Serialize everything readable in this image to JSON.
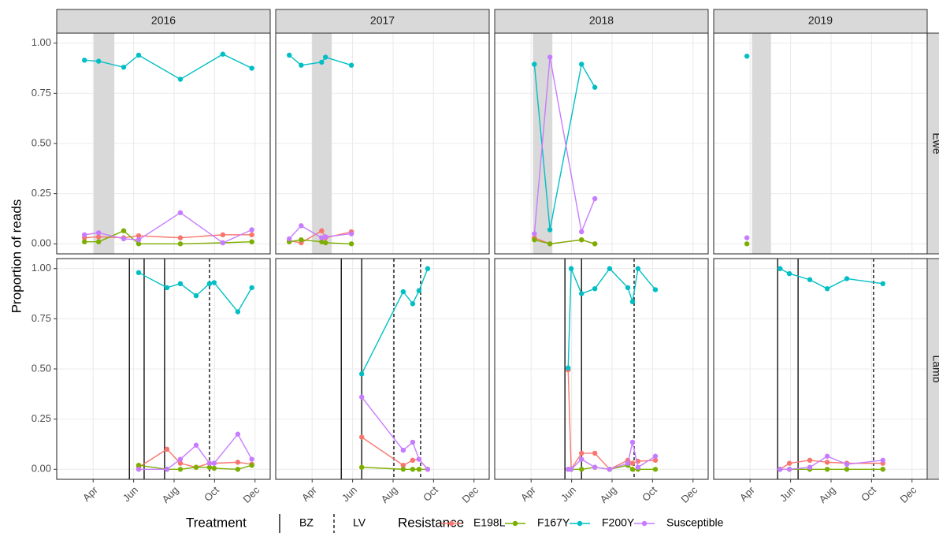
{
  "chart_data": {
    "type": "line",
    "y_label": "Proportion of reads",
    "ylim": [
      -0.05,
      1.05
    ],
    "yticks": [
      {
        "value": 0,
        "label": "0.00"
      },
      {
        "value": 0.25,
        "label": "0.25"
      },
      {
        "value": 0.5,
        "label": "0.50"
      },
      {
        "value": 0.75,
        "label": "0.75"
      },
      {
        "value": 1,
        "label": "1.00"
      }
    ],
    "xlim": [
      2.2,
      12.75
    ],
    "xticks": [
      {
        "value": 4,
        "label": "Apr"
      },
      {
        "value": 6,
        "label": "Jun"
      },
      {
        "value": 8,
        "label": "Aug"
      },
      {
        "value": 10,
        "label": "Oct"
      },
      {
        "value": 12,
        "label": "Dec"
      }
    ],
    "grid": true,
    "legend": {
      "treatment_title": "Treatment",
      "treatments": [
        "BZ",
        "LV"
      ],
      "resistance_title": "Resistance",
      "position": "bottom"
    },
    "series": [
      {
        "name": "E198L",
        "color": "#F8766D"
      },
      {
        "name": "F167Y",
        "color": "#7CAE00"
      },
      {
        "name": "F200Y",
        "color": "#00BFC4"
      },
      {
        "name": "Susceptible",
        "color": "#C77CFF"
      }
    ],
    "columns": [
      "2016",
      "2017",
      "2018",
      "2019"
    ],
    "rows": [
      {
        "label": "Ewe",
        "cells": [
          {
            "shade": [
              4.03,
              5.05
            ],
            "bz": [],
            "lv": [],
            "series": [
              {
                "name": "E198L",
                "x": [
                  3.57,
                  4.27,
                  5.51,
                  6.25,
                  8.31,
                  10.41,
                  11.84
                ],
                "values": [
                  0.03,
                  0.035,
                  0.03,
                  0.04,
                  0.03,
                  0.045,
                  0.045
                ]
              },
              {
                "name": "F167Y",
                "x": [
                  3.57,
                  4.27,
                  5.51,
                  6.25,
                  8.31,
                  10.41,
                  11.84
                ],
                "values": [
                  0.01,
                  0.01,
                  0.065,
                  0,
                  0,
                  0.005,
                  0.01
                ]
              },
              {
                "name": "F200Y",
                "x": [
                  3.57,
                  4.27,
                  5.51,
                  6.25,
                  8.31,
                  10.41,
                  11.84
                ],
                "values": [
                  0.915,
                  0.91,
                  0.88,
                  0.94,
                  0.82,
                  0.945,
                  0.875
                ]
              },
              {
                "name": "Susceptible",
                "x": [
                  3.57,
                  4.27,
                  5.51,
                  6.25,
                  8.31,
                  10.41,
                  11.84
                ],
                "values": [
                  0.045,
                  0.055,
                  0.025,
                  0.02,
                  0.155,
                  0.005,
                  0.07
                ]
              }
            ]
          },
          {
            "shade": [
              4.0,
              4.97
            ],
            "bz": [],
            "lv": [],
            "series": [
              {
                "name": "E198L",
                "x": [
                  2.87,
                  3.46,
                  4.47,
                  4.66,
                  5.94
                ],
                "values": [
                  0.015,
                  0.005,
                  0.065,
                  0.03,
                  0.06
                ]
              },
              {
                "name": "F167Y",
                "x": [
                  2.87,
                  3.46,
                  4.47,
                  4.66,
                  5.94
                ],
                "values": [
                  0.01,
                  0.02,
                  0.01,
                  0.005,
                  0
                ]
              },
              {
                "name": "F200Y",
                "x": [
                  2.87,
                  3.46,
                  4.47,
                  4.66,
                  5.94
                ],
                "values": [
                  0.94,
                  0.89,
                  0.905,
                  0.93,
                  0.89
                ]
              },
              {
                "name": "Susceptible",
                "x": [
                  2.87,
                  3.46,
                  4.47,
                  4.66,
                  5.94
                ],
                "values": [
                  0.025,
                  0.09,
                  0.03,
                  0.035,
                  0.05
                ]
              }
            ]
          },
          {
            "shade": [
              4.09,
              5.05
            ],
            "bz": [],
            "lv": [],
            "series": [
              {
                "name": "E198L",
                "x": [
                  4.16,
                  4.93,
                  6.49,
                  7.15
                ],
                "values": [
                  0.03,
                  0,
                  0.02,
                  0
                ]
              },
              {
                "name": "F167Y",
                "x": [
                  4.16,
                  4.93,
                  6.49,
                  7.15
                ],
                "values": [
                  0.02,
                  0,
                  0.02,
                  0
                ]
              },
              {
                "name": "F200Y",
                "x": [
                  4.16,
                  4.93,
                  6.49,
                  7.15
                ],
                "values": [
                  0.895,
                  0.07,
                  0.895,
                  0.78
                ]
              },
              {
                "name": "Susceptible",
                "x": [
                  4.16,
                  4.93,
                  6.49,
                  7.15
                ],
                "values": [
                  0.05,
                  0.93,
                  0.06,
                  0.225
                ]
              }
            ]
          },
          {
            "shade": [
              4.09,
              5.03
            ],
            "bz": [],
            "lv": [],
            "series": [
              {
                "name": "F167Y",
                "x": [
                  3.84
                ],
                "values": [
                  0
                ]
              },
              {
                "name": "F200Y",
                "x": [
                  3.84
                ],
                "values": [
                  0.935
                ]
              },
              {
                "name": "Susceptible",
                "x": [
                  3.84
                ],
                "values": [
                  0.03
                ]
              }
            ]
          }
        ]
      },
      {
        "label": "Lamb",
        "cells": [
          {
            "bz": [
              5.79,
              6.52,
              7.53
            ],
            "lv": [
              9.75
            ],
            "series": [
              {
                "name": "E198L",
                "x": [
                  6.25,
                  7.65,
                  8.31,
                  9.09,
                  9.75,
                  9.98,
                  11.15,
                  11.84
                ],
                "values": [
                  0.01,
                  0.1,
                  0.03,
                  0.01,
                  0.03,
                  0.03,
                  0.035,
                  0.025
                ]
              },
              {
                "name": "F167Y",
                "x": [
                  6.25,
                  7.65,
                  8.31,
                  9.09,
                  9.75,
                  9.98,
                  11.15,
                  11.84
                ],
                "values": [
                  0.02,
                  0,
                  0,
                  0.01,
                  0.01,
                  0.005,
                  0,
                  0.02
                ]
              },
              {
                "name": "F200Y",
                "x": [
                  6.25,
                  7.65,
                  8.31,
                  9.09,
                  9.75,
                  9.98,
                  11.15,
                  11.84
                ],
                "values": [
                  0.98,
                  0.905,
                  0.925,
                  0.865,
                  0.925,
                  0.93,
                  0.785,
                  0.905
                ]
              },
              {
                "name": "Susceptible",
                "x": [
                  6.25,
                  7.65,
                  8.31,
                  9.09,
                  9.75,
                  9.98,
                  11.15,
                  11.84
                ],
                "values": [
                  0,
                  0,
                  0.05,
                  0.12,
                  0.03,
                  0.03,
                  0.175,
                  0.05
                ]
              }
            ]
          },
          {
            "bz": [
              5.44,
              6.45
            ],
            "lv": [
              8.04,
              9.36
            ],
            "series": [
              {
                "name": "E198L",
                "x": [
                  6.45,
                  8.5,
                  8.97,
                  9.28,
                  9.71
                ],
                "values": [
                  0.16,
                  0.02,
                  0.045,
                  0.05,
                  0
                ]
              },
              {
                "name": "F167Y",
                "x": [
                  6.45,
                  8.5,
                  8.97,
                  9.28,
                  9.71
                ],
                "values": [
                  0.01,
                  0,
                  0,
                  0,
                  0
                ]
              },
              {
                "name": "F200Y",
                "x": [
                  6.45,
                  8.5,
                  8.97,
                  9.28,
                  9.71
                ],
                "values": [
                  0.475,
                  0.885,
                  0.825,
                  0.89,
                  1.0
                ]
              },
              {
                "name": "Susceptible",
                "x": [
                  6.45,
                  8.5,
                  8.97,
                  9.28,
                  9.71
                ],
                "values": [
                  0.36,
                  0.095,
                  0.135,
                  0.05,
                  0
                ]
              }
            ]
          },
          {
            "bz": [
              5.67,
              6.49
            ],
            "lv": [
              9.09
            ],
            "series": [
              {
                "name": "E198L",
                "x": [
                  5.83,
                  5.98,
                  6.49,
                  7.15,
                  7.88,
                  8.78,
                  9.01,
                  9.28,
                  10.14
                ],
                "values": [
                  0.495,
                  0,
                  0.08,
                  0.08,
                  0,
                  0.045,
                  0.03,
                  0.04,
                  0.045
                ]
              },
              {
                "name": "F167Y",
                "x": [
                  5.83,
                  5.98,
                  6.49,
                  7.15,
                  7.88,
                  8.78,
                  9.01,
                  9.28,
                  10.14
                ],
                "values": [
                  0,
                  0,
                  0,
                  0.01,
                  0,
                  0.02,
                  0,
                  0,
                  0
                ]
              },
              {
                "name": "F200Y",
                "x": [
                  5.83,
                  5.98,
                  6.49,
                  7.15,
                  7.88,
                  8.78,
                  9.01,
                  9.28,
                  10.14
                ],
                "values": [
                  0.505,
                  1.0,
                  0.875,
                  0.9,
                  1.0,
                  0.905,
                  0.835,
                  1.0,
                  0.895
                ]
              },
              {
                "name": "Susceptible",
                "x": [
                  5.83,
                  5.98,
                  6.49,
                  7.15,
                  7.88,
                  8.78,
                  9.01,
                  9.28,
                  10.14
                ],
                "values": [
                  0,
                  0,
                  0.05,
                  0.01,
                  0,
                  0.03,
                  0.135,
                  0.01,
                  0.065
                ]
              }
            ]
          },
          {
            "bz": [
              5.36,
              6.37
            ],
            "lv": [
              10.1
            ],
            "series": [
              {
                "name": "E198L",
                "x": [
                  5.48,
                  5.94,
                  6.95,
                  7.81,
                  8.78,
                  10.56
                ],
                "values": [
                  0,
                  0.03,
                  0.045,
                  0.035,
                  0.03,
                  0.03
                ]
              },
              {
                "name": "F167Y",
                "x": [
                  5.48,
                  5.94,
                  6.95,
                  7.81,
                  8.78,
                  10.56
                ],
                "values": [
                  0,
                  0,
                  0,
                  0,
                  0,
                  0
                ]
              },
              {
                "name": "F200Y",
                "x": [
                  5.48,
                  5.94,
                  6.95,
                  7.81,
                  8.78,
                  10.56
                ],
                "values": [
                  1.0,
                  0.975,
                  0.945,
                  0.9,
                  0.95,
                  0.925
                ]
              },
              {
                "name": "Susceptible",
                "x": [
                  5.48,
                  5.94,
                  6.95,
                  7.81,
                  8.78,
                  10.56
                ],
                "values": [
                  0,
                  0,
                  0.01,
                  0.065,
                  0.025,
                  0.045
                ]
              }
            ]
          }
        ]
      }
    ]
  }
}
